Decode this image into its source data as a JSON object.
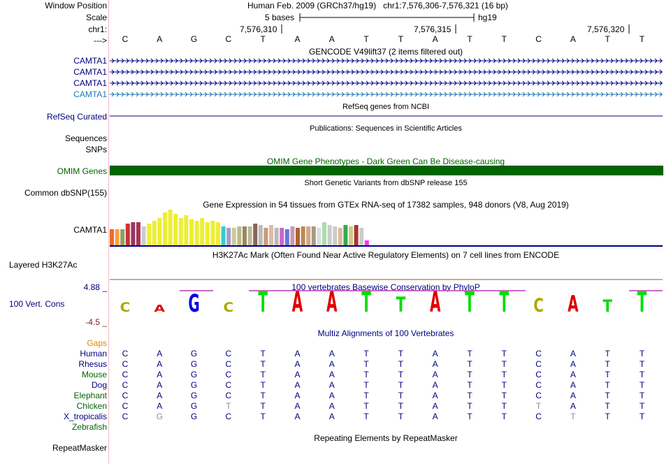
{
  "labels": {
    "window_position": "Window Position",
    "scale": "Scale",
    "chrom": "chr1:",
    "strand": "--->",
    "camta_rows": [
      "CAMTA1",
      "CAMTA1",
      "CAMTA1",
      "CAMTA1"
    ],
    "refseq": "RefSeq Curated",
    "sequences": "Sequences",
    "snps": "SNPs",
    "omim": "OMIM Genes",
    "dbsnp": "Common dbSNP(155)",
    "gtex": "CAMTA1",
    "h3k27ac": "Layered H3K27Ac",
    "phylop": "100 Vert. Cons",
    "gaps": "Gaps",
    "repeatmasker": "RepeatMasker"
  },
  "header": {
    "assembly": "Human Feb. 2009 (GRCh37/hg19)",
    "position": "chr1:7,576,306-7,576,321 (16 bp)",
    "scale_text": "5 bases",
    "scale_db": "hg19",
    "ruler_ticks": [
      "7,576,310",
      "7,576,315",
      "7,576,320"
    ]
  },
  "bases": [
    "C",
    "A",
    "G",
    "C",
    "T",
    "A",
    "A",
    "T",
    "T",
    "A",
    "T",
    "T",
    "C",
    "A",
    "T",
    "T"
  ],
  "tracks": {
    "gencode": "GENCODE V49lift37 (2 items filtered out)",
    "refseq": "RefSeq genes from NCBI",
    "publications": "Publications: Sequences in Scientific Articles",
    "omim": "OMIM Gene Phenotypes - Dark Green Can Be Disease-causing",
    "dbsnp": "Short Genetic Variants from dbSNP release 155",
    "gtex": "Gene Expression in 54 tissues from GTEx RNA-seq of 17382 samples, 948 donors (V8, Aug 2019)",
    "h3k27ac": "H3K27Ac Mark (Often Found Near Active Regulatory Elements) on 7 cell lines from ENCODE",
    "phylop": "100 vertebrates Basewise Conservation by PhyloP",
    "multiz": "Multiz Alignments of 100 Vertebrates",
    "repeatmasker": "Repeating Elements by RepeatMasker"
  },
  "phylop_axis": {
    "max": "4.88 _",
    "min": "-4.5 _"
  },
  "species": [
    {
      "name": "Human",
      "color": "#000080",
      "seq": [
        "C",
        "A",
        "G",
        "C",
        "T",
        "A",
        "A",
        "T",
        "T",
        "A",
        "T",
        "T",
        "C",
        "A",
        "T",
        "T"
      ]
    },
    {
      "name": "Rhesus",
      "color": "#000080",
      "seq": [
        "C",
        "A",
        "G",
        "C",
        "T",
        "A",
        "A",
        "T",
        "T",
        "A",
        "T",
        "T",
        "C",
        "A",
        "T",
        "T"
      ]
    },
    {
      "name": "Mouse",
      "color": "#006400",
      "seq": [
        "C",
        "A",
        "G",
        "C",
        "T",
        "A",
        "A",
        "T",
        "T",
        "A",
        "T",
        "T",
        "C",
        "A",
        "T",
        "T"
      ]
    },
    {
      "name": "Dog",
      "color": "#000080",
      "seq": [
        "C",
        "A",
        "G",
        "C",
        "T",
        "A",
        "A",
        "T",
        "T",
        "A",
        "T",
        "T",
        "C",
        "A",
        "T",
        "T"
      ]
    },
    {
      "name": "Elephant",
      "color": "#006400",
      "seq": [
        "C",
        "A",
        "G",
        "C",
        "T",
        "A",
        "A",
        "T",
        "T",
        "A",
        "T",
        "T",
        "C",
        "A",
        "T",
        "T"
      ]
    },
    {
      "name": "Chicken",
      "color": "#006400",
      "seq": [
        "C",
        "A",
        "G",
        "T",
        "T",
        "A",
        "A",
        "T",
        "T",
        "A",
        "T",
        "T",
        "T",
        "A",
        "T",
        "T"
      ]
    },
    {
      "name": "X_tropicalis",
      "color": "#000080",
      "seq": [
        "C",
        "G",
        "G",
        "C",
        "T",
        "A",
        "A",
        "T",
        "T",
        "A",
        "T",
        "T",
        "C",
        "T",
        "T",
        "T"
      ]
    },
    {
      "name": "Zebrafish",
      "color": "#006400",
      "seq": []
    }
  ],
  "colors": {
    "label_blue": "#000080",
    "camta_teal": "#1f77b4",
    "omim_green": "#006400",
    "gaps_orange": "#e08a00",
    "phylop_max": "#000080",
    "phylop_min": "#8b1a1a",
    "divider_pink": "#f2b8c6"
  }
}
